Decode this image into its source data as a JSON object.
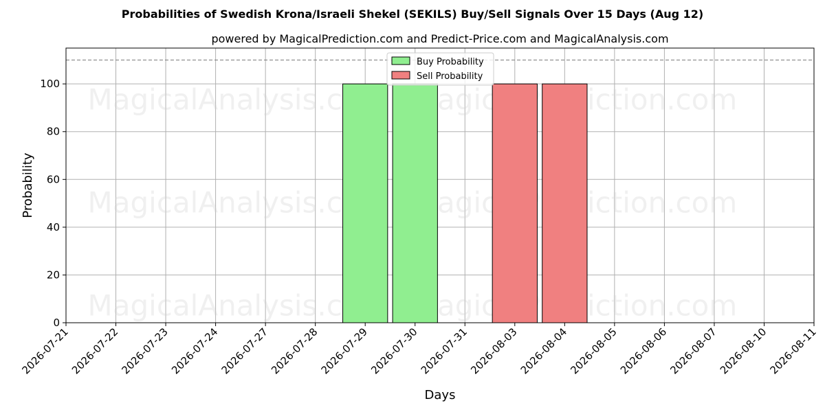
{
  "chart_data": {
    "type": "bar",
    "title": "Probabilities of Swedish Krona/Israeli Shekel (SEKILS) Buy/Sell Signals Over 15 Days (Aug 12)",
    "subtitle": "powered by MagicalPrediction.com and Predict-Price.com and MagicalAnalysis.com",
    "xlabel": "Days",
    "ylabel": "Probability",
    "ylim": [
      0,
      115
    ],
    "yticks": [
      0,
      20,
      40,
      60,
      80,
      100
    ],
    "reference_line": 110,
    "grid": true,
    "legend_position": "top-center",
    "categories": [
      "2026-07-21",
      "2026-07-22",
      "2026-07-23",
      "2026-07-24",
      "2026-07-27",
      "2026-07-28",
      "2026-07-29",
      "2026-07-30",
      "2026-07-31",
      "2026-08-03",
      "2026-08-04",
      "2026-08-05",
      "2026-08-06",
      "2026-08-07",
      "2026-08-10",
      "2026-08-11"
    ],
    "series": [
      {
        "name": "Buy Probability",
        "color": "#90ee90",
        "values": [
          0,
          0,
          0,
          0,
          0,
          0,
          100,
          100,
          0,
          0,
          0,
          0,
          0,
          0,
          0,
          0
        ]
      },
      {
        "name": "Sell Probability",
        "color": "#f08080",
        "values": [
          0,
          0,
          0,
          0,
          0,
          0,
          0,
          0,
          0,
          100,
          100,
          0,
          0,
          0,
          0,
          0
        ]
      }
    ],
    "watermarks": [
      "MagicalAnalysis.com",
      "MagicalPrediction.com"
    ]
  }
}
